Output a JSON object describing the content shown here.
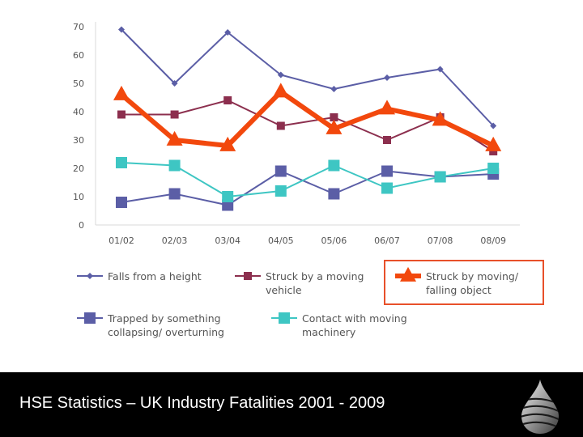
{
  "footer": {
    "title": "HSE Statistics – UK Industry Fatalities 2001 - 2009"
  },
  "logo": {
    "icon": "drop-logo-icon"
  },
  "chart_data": {
    "type": "line",
    "categories": [
      "01/02",
      "02/03",
      "03/04",
      "04/05",
      "05/06",
      "06/07",
      "07/08",
      "08/09"
    ],
    "ylim": [
      0,
      70
    ],
    "yticks": [
      0,
      10,
      20,
      30,
      40,
      50,
      60,
      70
    ],
    "ytick_labels": [
      "0",
      "10",
      "20",
      "30",
      "40",
      "50",
      "60",
      "70"
    ],
    "grid": false,
    "legend_position": "bottom",
    "series": [
      {
        "key": "falls",
        "name": "Falls from a height",
        "name_lines": [
          "Falls from a height"
        ],
        "values": [
          69,
          50,
          68,
          53,
          48,
          52,
          55,
          35
        ],
        "color": "#5b5ea6",
        "marker": "diamond",
        "highlight": false
      },
      {
        "key": "struck-vehicle",
        "name": "Struck by a moving vehicle",
        "name_lines": [
          "Struck by a moving",
          "vehicle"
        ],
        "values": [
          39,
          39,
          44,
          35,
          38,
          30,
          38,
          26
        ],
        "color": "#8c2f4e",
        "marker": "square",
        "highlight": false
      },
      {
        "key": "struck-object",
        "name": "Struck by moving/ falling object",
        "name_lines": [
          "Struck by moving/",
          "falling object"
        ],
        "values": [
          46,
          30,
          28,
          47,
          34,
          41,
          37,
          28
        ],
        "color": "#f2480d",
        "marker": "triangle",
        "highlight": true,
        "highlight_border": "#e8502a"
      },
      {
        "key": "trapped",
        "name": "Trapped by something collapsing/ overturning",
        "name_lines": [
          "Trapped by something",
          "collapsing/ overturning"
        ],
        "values": [
          8,
          11,
          7,
          19,
          11,
          19,
          17,
          18
        ],
        "color": "#5b5ea6",
        "marker": "bigsquare",
        "highlight": false
      },
      {
        "key": "contact",
        "name": "Contact with moving machinery",
        "name_lines": [
          "Contact with moving",
          "machinery"
        ],
        "values": [
          22,
          21,
          10,
          12,
          21,
          13,
          17,
          20
        ],
        "color": "#3ec6c3",
        "marker": "bigsquare",
        "highlight": false
      }
    ]
  }
}
